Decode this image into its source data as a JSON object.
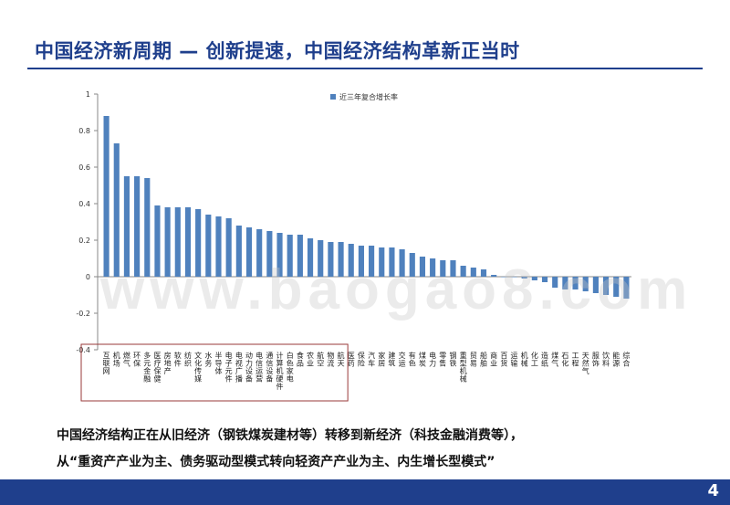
{
  "title": "中国经济新周期 — 创新提速，中国经济结构革新正当时",
  "caption_lines": [
    "中国经济结构正在从旧经济（钢铁煤炭建材等）转移到新经济（科技金融消费等），",
    "从“重资产产业为主、债务驱动型模式转向轻资产产业为主、内生增长型模式”"
  ],
  "watermark": "www.baogao8.com",
  "page_number": "4",
  "colors": {
    "bar": "#4f81bd",
    "title": "#1f3f8c",
    "highlight_box": "#9a3a3a"
  },
  "chart_data": {
    "type": "bar",
    "title": "",
    "xlabel": "",
    "ylabel": "",
    "ylim": [
      -0.4,
      1.0
    ],
    "yticks": [
      -0.4,
      -0.2,
      0,
      0.2,
      0.4,
      0.6,
      0.8,
      1
    ],
    "legend": {
      "label": "近三年复合增长率",
      "position": "top"
    },
    "highlight_range": [
      0,
      23
    ],
    "categories": [
      "互联网",
      "机场",
      "燃气",
      "环保",
      "多元金融",
      "医疗保健",
      "房地产",
      "软件",
      "纺织",
      "文化传媒",
      "水务",
      "半导体",
      "电子元件",
      "电视广播",
      "动力设备",
      "电信运营",
      "通信设备",
      "计算机硬件",
      "白色家电",
      "食品",
      "农业",
      "航空",
      "物流",
      "航天",
      "医药",
      "保险",
      "汽车",
      "家居",
      "建筑",
      "交运",
      "有色",
      "煤炭",
      "电力",
      "零售",
      "钢铁",
      "重型机械",
      "贸易",
      "船舶",
      "商业",
      "百货",
      "运输",
      "机械",
      "化工",
      "造纸",
      "煤气",
      "石化",
      "工程",
      "天然气",
      "服饰",
      "饮料",
      "能源",
      "综合"
    ],
    "category_labels": [
      "互联网",
      "机场",
      "燃气",
      "环保",
      "多元金融",
      "医疗保健",
      "房地产",
      "软件",
      "纺织",
      "文化传媒",
      "水务",
      "半导体",
      "电子元件",
      "电视广播",
      "动力设备",
      "电信运营",
      "通信设备",
      "计算机硬件",
      "白色家电",
      "食品",
      "农业",
      "航空",
      "物流",
      "航天",
      "医药",
      "保险",
      "汽车",
      "家居",
      "建筑",
      "交运",
      "有色",
      "煤炭",
      "电力",
      "零售",
      "钢铁",
      "重型机械",
      "贸易",
      "船舶",
      "商业",
      "百货",
      "运输",
      "机械",
      "化工",
      "造纸",
      "煤气",
      "石化",
      "工程",
      "天然气",
      "服饰",
      "饮料",
      "能源",
      "综合"
    ],
    "series": [
      {
        "name": "近三年复合增长率",
        "values": [
          0.88,
          0.73,
          0.55,
          0.55,
          0.54,
          0.39,
          0.38,
          0.38,
          0.38,
          0.37,
          0.34,
          0.33,
          0.32,
          0.28,
          0.27,
          0.26,
          0.25,
          0.24,
          0.23,
          0.23,
          0.21,
          0.2,
          0.19,
          0.19,
          0.18,
          0.17,
          0.17,
          0.16,
          0.16,
          0.15,
          0.13,
          0.11,
          0.1,
          0.09,
          0.09,
          0.06,
          0.05,
          0.04,
          0.01,
          0.0,
          0.0,
          -0.01,
          -0.02,
          -0.03,
          -0.06,
          -0.07,
          -0.07,
          -0.08,
          -0.09,
          -0.1,
          -0.11,
          -0.12
        ]
      }
    ]
  }
}
